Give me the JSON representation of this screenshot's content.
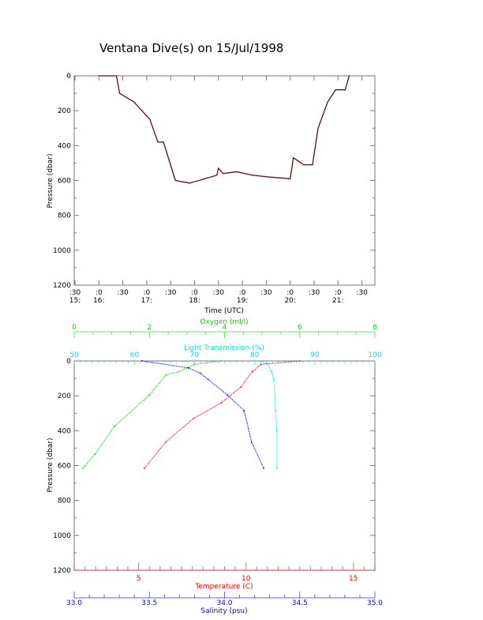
{
  "chart_data": [
    {
      "type": "line",
      "title": "Ventana Dive(s) on 15/Jul/1998",
      "xlabel": "Time (UTC)",
      "ylabel": "Pressure (dbar)",
      "ylim": [
        0,
        1200
      ],
      "yticks": [
        "0",
        "200",
        "400",
        "600",
        "800",
        "1000",
        "1200"
      ],
      "xlim_minutes_after_1530": [
        0,
        387
      ],
      "xtick_minutes": [
        ":30",
        "0",
        "30",
        "0",
        "30",
        "0",
        "30",
        "0",
        "30",
        "0",
        "30",
        "0",
        "30"
      ],
      "xtick_labels": [
        {
          "top": ":30",
          "bottom": "15:"
        },
        {
          "top": ":0",
          "bottom": "16:"
        },
        {
          "top": ":30",
          "bottom": ""
        },
        {
          "top": ":0",
          "bottom": "17:"
        },
        {
          "top": ":30",
          "bottom": ""
        },
        {
          "top": ":0",
          "bottom": "18:"
        },
        {
          "top": ":30",
          "bottom": ""
        },
        {
          "top": ":0",
          "bottom": "19:"
        },
        {
          "top": ":30",
          "bottom": ""
        },
        {
          "top": ":0",
          "bottom": "20:"
        },
        {
          "top": ":30",
          "bottom": ""
        },
        {
          "top": ":0",
          "bottom": "21:"
        },
        {
          "top": ":30",
          "bottom": ""
        }
      ],
      "series": [
        {
          "name": "Pressure",
          "color": "#5a1010",
          "points": [
            [
              30,
              0
            ],
            [
              52,
              0
            ],
            [
              56,
              100
            ],
            [
              74,
              150
            ],
            [
              84,
              200
            ],
            [
              94,
              250
            ],
            [
              104,
              380
            ],
            [
              111,
              380
            ],
            [
              126,
              600
            ],
            [
              144,
              615
            ],
            [
              163,
              590
            ],
            [
              178,
              570
            ],
            [
              180,
              530
            ],
            [
              186,
              560
            ],
            [
              203,
              550
            ],
            [
              223,
              570
            ],
            [
              243,
              580
            ],
            [
              270,
              590
            ],
            [
              274,
              470
            ],
            [
              287,
              510
            ],
            [
              298,
              510
            ],
            [
              305,
              300
            ],
            [
              317,
              150
            ],
            [
              327,
              80
            ],
            [
              339,
              80
            ],
            [
              344,
              0
            ]
          ]
        }
      ]
    },
    {
      "type": "scatter",
      "ylabel": "Pressure (dbar)",
      "ylim": [
        0,
        1200
      ],
      "yticks": [
        "0",
        "200",
        "400",
        "600",
        "800",
        "1000",
        "1200"
      ],
      "axes": [
        {
          "name": "Oxygen (ml/l)",
          "color": "#00dd00",
          "range": [
            0,
            8
          ],
          "ticks": [
            "0",
            "2",
            "4",
            "6",
            "8"
          ],
          "tick_values": [
            0,
            2,
            4,
            6,
            8
          ],
          "position": "top-outer"
        },
        {
          "name": "Light Transmission (%)",
          "color": "#00e5e5",
          "range": [
            50,
            100
          ],
          "ticks": [
            "50",
            "60",
            "70",
            "80",
            "90",
            "100"
          ],
          "tick_values": [
            50,
            60,
            70,
            80,
            90,
            100
          ],
          "position": "top-inner"
        },
        {
          "name": "Temperature (C)",
          "color": "#ff0000",
          "range": [
            2,
            16
          ],
          "ticks": [
            "5",
            "10",
            "15"
          ],
          "tick_values": [
            5,
            10,
            15
          ],
          "position": "bottom-inner"
        },
        {
          "name": "Salinity (psu)",
          "color": "#0000ff",
          "range": [
            33.0,
            35.0
          ],
          "ticks": [
            "33.0",
            "33.5",
            "34.0",
            "34.5",
            "35.0"
          ],
          "tick_values": [
            33.0,
            33.5,
            34.0,
            34.5,
            35.0
          ],
          "position": "bottom-outer"
        }
      ],
      "series": [
        {
          "name": "Oxygen",
          "axis": 0,
          "points": [
            [
              3.9,
              0
            ],
            [
              3.2,
              20
            ],
            [
              2.8,
              60
            ],
            [
              2.44,
              80
            ],
            [
              2.0,
              195
            ],
            [
              1.07,
              375
            ],
            [
              0.55,
              535
            ],
            [
              0.29,
              600
            ],
            [
              0.23,
              615
            ]
          ]
        },
        {
          "name": "Light Transmission",
          "axis": 1,
          "points": [
            [
              80.8,
              0
            ],
            [
              82.2,
              15
            ],
            [
              82.8,
              60
            ],
            [
              83.2,
              105
            ],
            [
              83.5,
              285
            ],
            [
              83.7,
              400
            ],
            [
              83.7,
              615
            ]
          ]
        },
        {
          "name": "Temperature",
          "axis": 2,
          "points": [
            [
              12.5,
              0
            ],
            [
              10.7,
              20
            ],
            [
              10.3,
              60
            ],
            [
              9.76,
              150
            ],
            [
              8.84,
              240
            ],
            [
              7.55,
              330
            ],
            [
              6.26,
              465
            ],
            [
              5.27,
              615
            ]
          ]
        },
        {
          "name": "Salinity",
          "axis": 3,
          "points": [
            [
              33.45,
              0
            ],
            [
              33.76,
              40
            ],
            [
              33.84,
              70
            ],
            [
              33.89,
              105
            ],
            [
              34.02,
              195
            ],
            [
              34.13,
              285
            ],
            [
              34.18,
              465
            ],
            [
              34.26,
              615
            ]
          ]
        }
      ]
    }
  ]
}
